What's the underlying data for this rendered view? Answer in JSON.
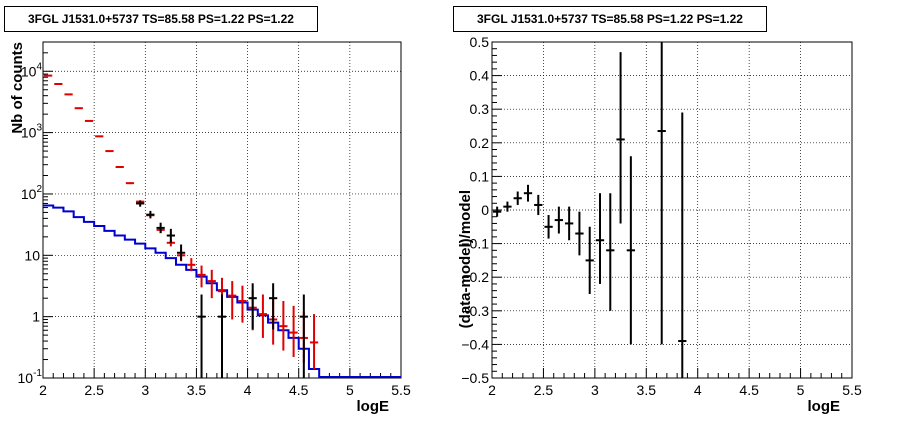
{
  "chart_data": [
    {
      "type": "step-line+errorbars",
      "title": "3FGL J1531.0+5737 TS=85.58 PS=1.22 PS=1.22",
      "xlabel": "logE",
      "ylabel": "Nb of counts",
      "xlim": [
        2,
        5.5
      ],
      "ylim": [
        0.1,
        30000
      ],
      "yscale": "log",
      "grid": true,
      "x_ticks": [
        "2",
        "2.5",
        "3",
        "3.5",
        "4",
        "4.5",
        "5",
        "5.5"
      ],
      "y_ticks": [
        {
          "value": 0.1,
          "base": "10",
          "exp": "-1"
        },
        {
          "value": 1,
          "base": "1",
          "exp": ""
        },
        {
          "value": 10,
          "base": "10",
          "exp": ""
        },
        {
          "value": 100,
          "base": "10",
          "exp": "2"
        },
        {
          "value": 1000,
          "base": "10",
          "exp": "3"
        },
        {
          "value": 10000,
          "base": "10",
          "exp": "4"
        }
      ],
      "bin_width": 0.1,
      "series": [
        {
          "color": "#e00000",
          "style": "points",
          "x": [
            2.05,
            2.15,
            2.25,
            2.35,
            2.45,
            2.55,
            2.65,
            2.75,
            2.85,
            2.95,
            3.05,
            3.15,
            3.25,
            3.35,
            3.45,
            3.55,
            3.65,
            3.75,
            3.85,
            3.95,
            4.05,
            4.15,
            4.25,
            4.35,
            4.45,
            4.55,
            4.65
          ],
          "y": [
            8500,
            6200,
            4200,
            2500,
            1550,
            870,
            500,
            275,
            150,
            75,
            45,
            26,
            16,
            10,
            7,
            4.8,
            3.8,
            2.6,
            2.2,
            1.8,
            1.4,
            1.1,
            0.9,
            0.7,
            0.55,
            0.45,
            0.38
          ],
          "ylo": [
            8400,
            6100,
            4100,
            2450,
            1520,
            850,
            490,
            268,
            145,
            71,
            42,
            23,
            14,
            8,
            5.5,
            3,
            2,
            1.2,
            0.9,
            0.8,
            0.6,
            0.45,
            0.35,
            0.28,
            0.22,
            0.18,
            0.14
          ],
          "yhi": [
            8600,
            6300,
            4300,
            2550,
            1580,
            890,
            510,
            282,
            155,
            79,
            48,
            29,
            18,
            12.5,
            9,
            6.8,
            5.8,
            4.3,
            3.8,
            3.2,
            2.7,
            2.3,
            2.0,
            1.8,
            1.5,
            1.2,
            1.1
          ]
        },
        {
          "color": "#000000",
          "style": "points",
          "x": [
            2.95,
            3.05,
            3.15,
            3.25,
            3.35,
            3.55,
            3.75,
            4.05,
            4.25,
            4.55
          ],
          "y": [
            70,
            46,
            28,
            21,
            11,
            1,
            1,
            2,
            2,
            1
          ],
          "ylo": [
            62,
            40,
            23,
            16,
            8.2,
            0.1,
            0.1,
            0.62,
            0.62,
            0.1
          ],
          "yhi": [
            78,
            53,
            34,
            27,
            15,
            2.3,
            2.3,
            3.5,
            3.5,
            2.3
          ]
        },
        {
          "color": "#0000d0",
          "style": "step",
          "edges": [
            2.0,
            2.1,
            2.2,
            2.3,
            2.4,
            2.5,
            2.6,
            2.7,
            2.8,
            2.9,
            3.0,
            3.1,
            3.2,
            3.3,
            3.4,
            3.5,
            3.6,
            3.7,
            3.8,
            3.9,
            4.0,
            4.1,
            4.2,
            4.3,
            4.4,
            4.5,
            4.6,
            4.7,
            5.5
          ],
          "values": [
            65,
            60,
            52,
            42,
            35,
            30,
            25,
            21,
            18,
            15.5,
            13,
            11,
            9,
            7,
            5.8,
            4.5,
            3.5,
            2.7,
            2.1,
            1.7,
            1.3,
            1.05,
            0.8,
            0.6,
            0.45,
            0.3,
            0.14,
            0.1
          ]
        }
      ]
    },
    {
      "type": "errorbars",
      "title": "3FGL J1531.0+5737 TS=85.58 PS=1.22 PS=1.22",
      "xlabel": "logE",
      "ylabel": "(data-model)/model",
      "xlim": [
        2,
        5.5
      ],
      "ylim": [
        -0.5,
        0.5
      ],
      "grid": true,
      "x_ticks": [
        "2",
        "2.5",
        "3",
        "3.5",
        "4",
        "4.5",
        "5",
        "5.5"
      ],
      "y_ticks": [
        "−0.5",
        "−0.4",
        "−0.3",
        "−0.2",
        "−0.1",
        "0",
        "0.1",
        "0.2",
        "0.3",
        "0.4",
        "0.5"
      ],
      "bin_width": 0.1,
      "series": [
        {
          "color": "#000000",
          "x": [
            2.05,
            2.15,
            2.25,
            2.35,
            2.45,
            2.55,
            2.65,
            2.75,
            2.85,
            2.95,
            3.05,
            3.15,
            3.25,
            3.35,
            3.65,
            3.85
          ],
          "y": [
            -0.005,
            0.01,
            0.035,
            0.05,
            0.015,
            -0.05,
            -0.03,
            -0.04,
            -0.07,
            -0.15,
            -0.09,
            -0.12,
            0.21,
            -0.12,
            0.235,
            -0.39
          ],
          "ylo": [
            -0.02,
            -0.005,
            0.015,
            0.025,
            -0.015,
            -0.085,
            -0.07,
            -0.09,
            -0.135,
            -0.25,
            -0.22,
            -0.3,
            -0.04,
            -0.4,
            -0.4,
            -0.5
          ],
          "yhi": [
            0.01,
            0.025,
            0.055,
            0.075,
            0.045,
            -0.015,
            0.01,
            0.01,
            -0.005,
            -0.05,
            0.05,
            0.05,
            0.47,
            0.16,
            0.5,
            0.29
          ]
        }
      ]
    }
  ]
}
